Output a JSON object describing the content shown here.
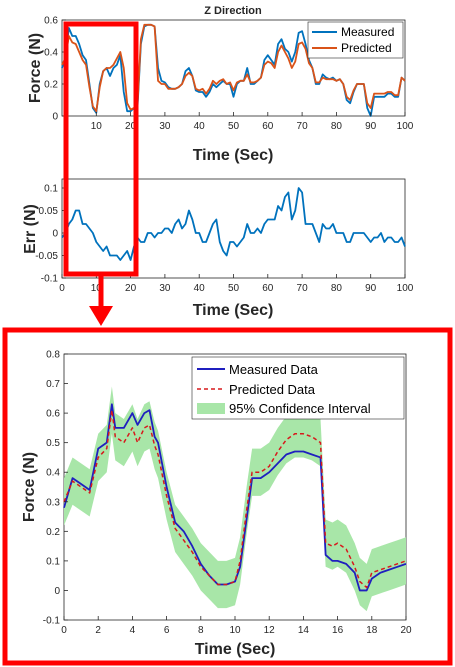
{
  "chart_data": [
    {
      "type": "line",
      "title": "Z Direction",
      "xlabel": "Time (Sec)",
      "ylabel": "Force (N)",
      "xlim": [
        0,
        100
      ],
      "ylim": [
        0,
        0.6
      ],
      "xticks": [
        "10",
        "20",
        "30",
        "40",
        "50",
        "60",
        "70",
        "80",
        "90",
        "100"
      ],
      "yticks": [
        "0",
        "0.2",
        "0.4",
        "0.6"
      ],
      "legend_position": "top-right",
      "grid": false,
      "series": [
        {
          "name": "Measured",
          "color": "#0072BD",
          "x": [
            0,
            1,
            2,
            3,
            4,
            5,
            6,
            7,
            8,
            9,
            10,
            11,
            12,
            13,
            14,
            15,
            16,
            17,
            18,
            19,
            20,
            21,
            22,
            23,
            24,
            25,
            26,
            27,
            28,
            29,
            30,
            31,
            32,
            33,
            34,
            35,
            36,
            37,
            38,
            39,
            40,
            41,
            42,
            43,
            44,
            45,
            46,
            47,
            48,
            49,
            50,
            51,
            52,
            53,
            54,
            55,
            56,
            57,
            58,
            59,
            60,
            61,
            62,
            63,
            64,
            65,
            66,
            67,
            68,
            69,
            70,
            71,
            72,
            73,
            74,
            75,
            76,
            77,
            78,
            79,
            80,
            81,
            82,
            83,
            84,
            85,
            86,
            87,
            88,
            89,
            90,
            91,
            92,
            93,
            94,
            95,
            96,
            97,
            98,
            99,
            100
          ],
          "y": [
            0.3,
            0.37,
            0.55,
            0.5,
            0.5,
            0.45,
            0.38,
            0.35,
            0.2,
            0.05,
            0.02,
            0.2,
            0.28,
            0.3,
            0.25,
            0.3,
            0.32,
            0.38,
            0.15,
            0.03,
            0.03,
            0.05,
            0.05,
            0.45,
            0.56,
            0.57,
            0.57,
            0.56,
            0.3,
            0.22,
            0.21,
            0.18,
            0.17,
            0.17,
            0.18,
            0.2,
            0.28,
            0.3,
            0.25,
            0.16,
            0.15,
            0.15,
            0.12,
            0.15,
            0.2,
            0.18,
            0.2,
            0.22,
            0.2,
            0.2,
            0.12,
            0.2,
            0.22,
            0.22,
            0.3,
            0.2,
            0.2,
            0.22,
            0.24,
            0.35,
            0.38,
            0.35,
            0.32,
            0.45,
            0.48,
            0.42,
            0.4,
            0.34,
            0.4,
            0.52,
            0.53,
            0.45,
            0.35,
            0.3,
            0.2,
            0.2,
            0.26,
            0.24,
            0.23,
            0.24,
            0.22,
            0.23,
            0.2,
            0.1,
            0.08,
            0.15,
            0.2,
            0.2,
            0.2,
            0.05,
            0.0,
            0.12,
            0.12,
            0.12,
            0.12,
            0.14,
            0.14,
            0.12,
            0.12,
            0.24,
            0.22
          ]
        },
        {
          "name": "Predicted",
          "color": "#D95319",
          "x": [
            0,
            1,
            2,
            3,
            4,
            5,
            6,
            7,
            8,
            9,
            10,
            11,
            12,
            13,
            14,
            15,
            16,
            17,
            18,
            19,
            20,
            21,
            22,
            23,
            24,
            25,
            26,
            27,
            28,
            29,
            30,
            31,
            32,
            33,
            34,
            35,
            36,
            37,
            38,
            39,
            40,
            41,
            42,
            43,
            44,
            45,
            46,
            47,
            48,
            49,
            50,
            51,
            52,
            53,
            54,
            55,
            56,
            57,
            58,
            59,
            60,
            61,
            62,
            63,
            64,
            65,
            66,
            67,
            68,
            69,
            70,
            71,
            72,
            73,
            74,
            75,
            76,
            77,
            78,
            79,
            80,
            81,
            82,
            83,
            84,
            85,
            86,
            87,
            88,
            89,
            90,
            91,
            92,
            93,
            94,
            95,
            96,
            97,
            98,
            99,
            100
          ],
          "y": [
            0.32,
            0.36,
            0.5,
            0.46,
            0.45,
            0.4,
            0.35,
            0.32,
            0.18,
            0.06,
            0.03,
            0.18,
            0.28,
            0.3,
            0.3,
            0.32,
            0.36,
            0.4,
            0.3,
            0.08,
            0.04,
            0.05,
            0.07,
            0.48,
            0.57,
            0.57,
            0.57,
            0.56,
            0.22,
            0.2,
            0.2,
            0.17,
            0.17,
            0.17,
            0.18,
            0.2,
            0.25,
            0.27,
            0.25,
            0.17,
            0.16,
            0.17,
            0.14,
            0.17,
            0.22,
            0.2,
            0.22,
            0.23,
            0.2,
            0.21,
            0.16,
            0.21,
            0.22,
            0.22,
            0.26,
            0.21,
            0.21,
            0.22,
            0.24,
            0.32,
            0.34,
            0.33,
            0.3,
            0.4,
            0.44,
            0.4,
            0.36,
            0.3,
            0.34,
            0.45,
            0.46,
            0.42,
            0.33,
            0.3,
            0.21,
            0.21,
            0.24,
            0.23,
            0.23,
            0.23,
            0.22,
            0.23,
            0.2,
            0.12,
            0.1,
            0.16,
            0.2,
            0.2,
            0.2,
            0.08,
            0.05,
            0.14,
            0.14,
            0.14,
            0.14,
            0.15,
            0.15,
            0.13,
            0.13,
            0.24,
            0.22
          ]
        }
      ]
    },
    {
      "type": "line",
      "title": "",
      "xlabel": "Time (Sec)",
      "ylabel": "Err (N)",
      "xlim": [
        0,
        100
      ],
      "ylim": [
        -0.1,
        0.12
      ],
      "xticks": [
        "0",
        "10",
        "20",
        "30",
        "40",
        "50",
        "60",
        "70",
        "80",
        "90",
        "100"
      ],
      "yticks": [
        "-0.1",
        "-0.05",
        "0",
        "0.05",
        "0.1"
      ],
      "grid": false,
      "series": [
        {
          "name": "",
          "color": "#0072BD",
          "x": [
            0,
            1,
            2,
            3,
            4,
            5,
            6,
            7,
            8,
            9,
            10,
            11,
            12,
            13,
            14,
            15,
            16,
            17,
            18,
            19,
            20,
            21,
            22,
            23,
            24,
            25,
            26,
            27,
            28,
            29,
            30,
            31,
            32,
            33,
            34,
            35,
            36,
            37,
            38,
            39,
            40,
            41,
            42,
            43,
            44,
            45,
            46,
            47,
            48,
            49,
            50,
            51,
            52,
            53,
            54,
            55,
            56,
            57,
            58,
            59,
            60,
            61,
            62,
            63,
            64,
            65,
            66,
            67,
            68,
            69,
            70,
            71,
            72,
            73,
            74,
            75,
            76,
            77,
            78,
            79,
            80,
            81,
            82,
            83,
            84,
            85,
            86,
            87,
            88,
            89,
            90,
            91,
            92,
            93,
            94,
            95,
            96,
            97,
            98,
            99,
            100
          ],
          "y": [
            -0.01,
            0.0,
            0.02,
            0.03,
            0.05,
            0.05,
            0.02,
            0.02,
            0.01,
            0.0,
            -0.02,
            -0.03,
            -0.04,
            -0.03,
            -0.05,
            -0.05,
            -0.05,
            -0.06,
            -0.05,
            -0.04,
            -0.06,
            -0.03,
            -0.01,
            -0.02,
            -0.02,
            0.0,
            0.0,
            -0.01,
            0.0,
            0.0,
            0.01,
            0.01,
            0.0,
            0.02,
            0.03,
            0.01,
            0.02,
            0.05,
            0.03,
            0.0,
            0.0,
            -0.02,
            -0.02,
            0.0,
            0.02,
            0.03,
            -0.02,
            -0.04,
            -0.05,
            -0.02,
            -0.02,
            -0.03,
            -0.02,
            -0.01,
            0.02,
            0.0,
            0.0,
            0.01,
            0.0,
            0.02,
            0.03,
            0.03,
            0.03,
            0.06,
            0.05,
            0.08,
            0.09,
            0.03,
            0.05,
            0.1,
            0.09,
            0.02,
            0.02,
            0.02,
            0.0,
            -0.02,
            0.02,
            0.01,
            0.01,
            0.02,
            0.0,
            0.0,
            0.0,
            -0.02,
            -0.02,
            0.0,
            0.0,
            0.0,
            0.0,
            -0.01,
            -0.02,
            -0.01,
            -0.01,
            0.0,
            -0.02,
            -0.01,
            -0.01,
            -0.02,
            -0.02,
            -0.01,
            -0.03
          ]
        }
      ]
    },
    {
      "type": "line",
      "title": "",
      "xlabel": "Time (Sec)",
      "ylabel": "Force (N)",
      "xlim": [
        0,
        20
      ],
      "ylim": [
        -0.1,
        0.8
      ],
      "xticks": [
        "0",
        "2",
        "4",
        "6",
        "8",
        "10",
        "12",
        "14",
        "16",
        "18",
        "20"
      ],
      "yticks": [
        "-0.1",
        "0",
        "0.1",
        "0.2",
        "0.3",
        "0.4",
        "0.5",
        "0.6",
        "0.7",
        "0.8"
      ],
      "legend_position": "top-right",
      "grid": false,
      "series": [
        {
          "name": "Measured Data",
          "color": "#1F1FBF",
          "style": "solid",
          "x": [
            0,
            0.5,
            1,
            1.5,
            2,
            2.5,
            2.8,
            3,
            3.5,
            4,
            4.3,
            4.7,
            5,
            5.3,
            5.5,
            6,
            6.5,
            7,
            7.5,
            8,
            8.5,
            9,
            9.5,
            10,
            10.3,
            10.7,
            11,
            11.5,
            12,
            12.5,
            13,
            13.5,
            14,
            14.5,
            15,
            15.3,
            15.7,
            16,
            16.5,
            17,
            17.3,
            17.7,
            18,
            18.5,
            19,
            19.5,
            20
          ],
          "y": [
            0.28,
            0.38,
            0.36,
            0.34,
            0.48,
            0.5,
            0.63,
            0.55,
            0.55,
            0.6,
            0.56,
            0.6,
            0.61,
            0.52,
            0.5,
            0.35,
            0.23,
            0.2,
            0.15,
            0.09,
            0.05,
            0.02,
            0.02,
            0.03,
            0.08,
            0.25,
            0.38,
            0.38,
            0.4,
            0.43,
            0.46,
            0.47,
            0.47,
            0.46,
            0.45,
            0.12,
            0.1,
            0.1,
            0.09,
            0.06,
            0.0,
            0.0,
            0.04,
            0.06,
            0.07,
            0.08,
            0.09
          ]
        },
        {
          "name": "Predicted Data",
          "color": "#D7191C",
          "style": "dashed",
          "x": [
            0,
            0.5,
            1,
            1.5,
            2,
            2.5,
            2.8,
            3,
            3.5,
            4,
            4.3,
            4.7,
            5,
            5.3,
            5.5,
            6,
            6.5,
            7,
            7.5,
            8,
            8.5,
            9,
            9.5,
            10,
            10.3,
            10.7,
            11,
            11.5,
            12,
            12.5,
            13,
            13.5,
            14,
            14.5,
            15,
            15.3,
            15.7,
            16,
            16.5,
            17,
            17.3,
            17.7,
            18,
            18.5,
            19,
            19.5,
            20
          ],
          "y": [
            0.3,
            0.37,
            0.35,
            0.33,
            0.45,
            0.48,
            0.61,
            0.52,
            0.5,
            0.55,
            0.5,
            0.55,
            0.56,
            0.49,
            0.46,
            0.32,
            0.21,
            0.17,
            0.13,
            0.08,
            0.05,
            0.02,
            0.02,
            0.03,
            0.1,
            0.28,
            0.4,
            0.4,
            0.42,
            0.47,
            0.51,
            0.53,
            0.53,
            0.52,
            0.5,
            0.16,
            0.15,
            0.16,
            0.14,
            0.08,
            0.03,
            0.01,
            0.06,
            0.07,
            0.08,
            0.09,
            0.1
          ]
        },
        {
          "name": "95% Confidence Interval",
          "color": "#A8E6A8",
          "style": "band",
          "band_half_width": 0.08
        }
      ]
    }
  ]
}
